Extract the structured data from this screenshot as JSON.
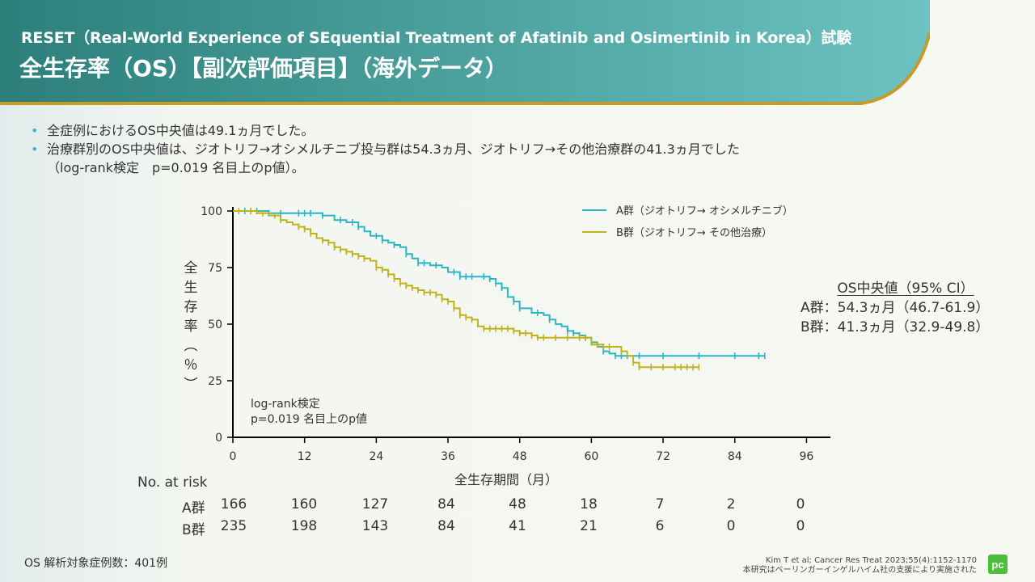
{
  "colors": {
    "header_start": "#2c7f7a",
    "header_end": "#6cc3c2",
    "gold": "#c69a2c",
    "group_a": "#2cb5c5",
    "group_b": "#c0b21b",
    "logo": "#4bbf3a"
  },
  "header": {
    "subtitle": "RESET（Real-World Experience of SEquential Treatment of Afatinib and Osimertinib in Korea）試験",
    "title": "全生存率（OS）【副次評価項目】（海外データ）"
  },
  "bullets": {
    "line1": "全症例におけるOS中央値は49.1ヵ月でした。",
    "line2": "治療群別のOS中央値は、ジオトリフ→オシメルチニブ投与群は54.3ヵ月、ジオトリフ→その他治療群の41.3ヵ月でした",
    "line3": "（log-rank検定　p=0.019  名目上のp値）。"
  },
  "legend": {
    "a_label": "A群（ジオトリフ→ オシメルチニブ）",
    "b_label": "B群（ジオトリフ→ その他治療）"
  },
  "chart_data": {
    "type": "line",
    "subtype": "kaplan-meier",
    "xlabel": "全生存期間（月）",
    "ylabel_chars": [
      "全",
      "生",
      "存",
      "率",
      "︵",
      "％",
      "︶"
    ],
    "x_ticks": [
      0,
      12,
      24,
      36,
      48,
      60,
      72,
      84,
      96
    ],
    "y_ticks": [
      0,
      25,
      50,
      75,
      100
    ],
    "xlim": [
      0,
      100
    ],
    "ylim": [
      0,
      100
    ],
    "series": [
      {
        "name": "A群（ジオトリフ→ オシメルチニブ）",
        "color": "#2cb5c5",
        "points": [
          [
            0,
            100
          ],
          [
            5,
            100
          ],
          [
            6,
            99
          ],
          [
            12,
            99
          ],
          [
            15,
            98
          ],
          [
            17,
            96
          ],
          [
            19,
            95
          ],
          [
            21,
            93
          ],
          [
            22,
            91
          ],
          [
            23,
            89
          ],
          [
            25,
            87
          ],
          [
            26,
            86
          ],
          [
            27,
            85
          ],
          [
            28,
            84
          ],
          [
            29,
            81
          ],
          [
            30,
            79
          ],
          [
            31,
            77
          ],
          [
            33,
            76
          ],
          [
            35,
            75
          ],
          [
            36,
            73
          ],
          [
            38,
            71
          ],
          [
            42,
            71
          ],
          [
            43,
            70
          ],
          [
            44,
            68
          ],
          [
            45,
            66
          ],
          [
            46,
            62
          ],
          [
            47,
            60
          ],
          [
            48,
            57
          ],
          [
            50,
            55
          ],
          [
            52,
            54
          ],
          [
            53,
            52
          ],
          [
            54,
            50
          ],
          [
            55,
            49
          ],
          [
            56,
            47
          ],
          [
            57,
            46
          ],
          [
            58,
            45
          ],
          [
            59,
            44
          ],
          [
            60,
            42
          ],
          [
            61,
            40
          ],
          [
            62,
            38
          ],
          [
            63,
            37
          ],
          [
            64,
            36
          ],
          [
            66,
            36
          ],
          [
            89,
            36
          ]
        ],
        "censors": [
          [
            2,
            100
          ],
          [
            3,
            100
          ],
          [
            4,
            100
          ],
          [
            6,
            99
          ],
          [
            8,
            99
          ],
          [
            11,
            99
          ],
          [
            12,
            99
          ],
          [
            13,
            99
          ],
          [
            15,
            98
          ],
          [
            18,
            95
          ],
          [
            20,
            93
          ],
          [
            21,
            92
          ],
          [
            24,
            88
          ],
          [
            25,
            87
          ],
          [
            27,
            85
          ],
          [
            29,
            81
          ],
          [
            31,
            76
          ],
          [
            32,
            76
          ],
          [
            34,
            75
          ],
          [
            37,
            72
          ],
          [
            38,
            71
          ],
          [
            39,
            71
          ],
          [
            40,
            71
          ],
          [
            42,
            71
          ],
          [
            43,
            69
          ],
          [
            44,
            68
          ],
          [
            45,
            67
          ],
          [
            47,
            60
          ],
          [
            48,
            58
          ],
          [
            51,
            55
          ],
          [
            53,
            52
          ],
          [
            56,
            49
          ],
          [
            57,
            48
          ],
          [
            58,
            48
          ],
          [
            59,
            48
          ],
          [
            60,
            44
          ],
          [
            62,
            40
          ],
          [
            64,
            36
          ],
          [
            65,
            36
          ],
          [
            66,
            36
          ],
          [
            68,
            36
          ],
          [
            72,
            36
          ],
          [
            78,
            36
          ],
          [
            84,
            36
          ],
          [
            88,
            36
          ],
          [
            89,
            36
          ]
        ]
      },
      {
        "name": "B群（ジオトリフ→ その他治療）",
        "color": "#c0b21b",
        "points": [
          [
            0,
            100
          ],
          [
            2,
            100
          ],
          [
            4,
            99
          ],
          [
            6,
            98
          ],
          [
            8,
            96
          ],
          [
            9,
            95
          ],
          [
            10,
            94
          ],
          [
            11,
            93
          ],
          [
            12,
            92
          ],
          [
            13,
            90
          ],
          [
            14,
            88
          ],
          [
            15,
            87
          ],
          [
            16,
            86
          ],
          [
            17,
            84
          ],
          [
            18,
            83
          ],
          [
            19,
            82
          ],
          [
            20,
            81
          ],
          [
            21,
            80
          ],
          [
            22,
            79
          ],
          [
            23,
            78
          ],
          [
            24,
            75
          ],
          [
            25,
            74
          ],
          [
            26,
            72
          ],
          [
            27,
            70
          ],
          [
            28,
            68
          ],
          [
            29,
            67
          ],
          [
            30,
            66
          ],
          [
            31,
            65
          ],
          [
            32,
            64
          ],
          [
            33,
            64
          ],
          [
            34,
            63
          ],
          [
            35,
            61
          ],
          [
            36,
            60
          ],
          [
            37,
            57
          ],
          [
            38,
            54
          ],
          [
            39,
            53
          ],
          [
            40,
            52
          ],
          [
            41,
            49
          ],
          [
            42,
            48
          ],
          [
            43,
            48
          ],
          [
            46,
            48
          ],
          [
            47,
            47
          ],
          [
            48,
            46
          ],
          [
            49,
            46
          ],
          [
            50,
            45
          ],
          [
            51,
            44
          ],
          [
            59,
            44
          ],
          [
            60,
            41
          ],
          [
            61,
            41
          ],
          [
            62,
            40
          ],
          [
            64,
            40
          ],
          [
            65,
            38
          ],
          [
            66,
            36
          ],
          [
            67,
            33
          ],
          [
            68,
            31
          ],
          [
            78,
            31
          ]
        ],
        "censors": [
          [
            1,
            100
          ],
          [
            3,
            99
          ],
          [
            5,
            98
          ],
          [
            7,
            97
          ],
          [
            8,
            96
          ],
          [
            11,
            93
          ],
          [
            12,
            92
          ],
          [
            13,
            91
          ],
          [
            15,
            87
          ],
          [
            16,
            86
          ],
          [
            17,
            85
          ],
          [
            18,
            84
          ],
          [
            19,
            82
          ],
          [
            20,
            81
          ],
          [
            21,
            80
          ],
          [
            22,
            79
          ],
          [
            24,
            75
          ],
          [
            25,
            74
          ],
          [
            26,
            73
          ],
          [
            27,
            70
          ],
          [
            28,
            68
          ],
          [
            29,
            67
          ],
          [
            30,
            66
          ],
          [
            31,
            65
          ],
          [
            32,
            64
          ],
          [
            33,
            64
          ],
          [
            34,
            63
          ],
          [
            35,
            61
          ],
          [
            36,
            60
          ],
          [
            37,
            57
          ],
          [
            38,
            55
          ],
          [
            39,
            53
          ],
          [
            40,
            52
          ],
          [
            42,
            48
          ],
          [
            43,
            48
          ],
          [
            44,
            48
          ],
          [
            45,
            48
          ],
          [
            46,
            48
          ],
          [
            47,
            47
          ],
          [
            48,
            46
          ],
          [
            49,
            46
          ],
          [
            50,
            45
          ],
          [
            51,
            44
          ],
          [
            52,
            44
          ],
          [
            54,
            44
          ],
          [
            56,
            44
          ],
          [
            58,
            44
          ],
          [
            59,
            44
          ],
          [
            61,
            41
          ],
          [
            62,
            41
          ],
          [
            63,
            41
          ],
          [
            65,
            39
          ],
          [
            67,
            33
          ],
          [
            68,
            31
          ],
          [
            70,
            31
          ],
          [
            72,
            31
          ],
          [
            74,
            31
          ],
          [
            75,
            31
          ],
          [
            76,
            31
          ],
          [
            77,
            31
          ],
          [
            78,
            31
          ]
        ]
      }
    ]
  },
  "logrank": {
    "line1": "log-rank検定",
    "line2": "p=0.019  名目上のp値"
  },
  "median": {
    "title": "OS中央値（95% CI）",
    "a": "A群：54.3ヵ月（46.7-61.9）",
    "b": "B群：41.3ヵ月（32.9-49.8）"
  },
  "risk_table": {
    "title": "No. at risk",
    "rows": [
      {
        "label": "A群",
        "values": [
          "166",
          "160",
          "127",
          "84",
          "48",
          "18",
          "7",
          "2",
          "0"
        ]
      },
      {
        "label": "B群",
        "values": [
          "235",
          "198",
          "143",
          "84",
          "41",
          "21",
          "6",
          "0",
          "0"
        ]
      }
    ]
  },
  "footnote": "OS 解析対象症例数：401例",
  "citation": {
    "line1": "Kim T et al; Cancer Res Treat 2023;55(4):1152-1170",
    "line2": "本研究はベーリンガーインゲルハイム社の支援により実施された"
  },
  "logo": {
    "text": "pc"
  }
}
